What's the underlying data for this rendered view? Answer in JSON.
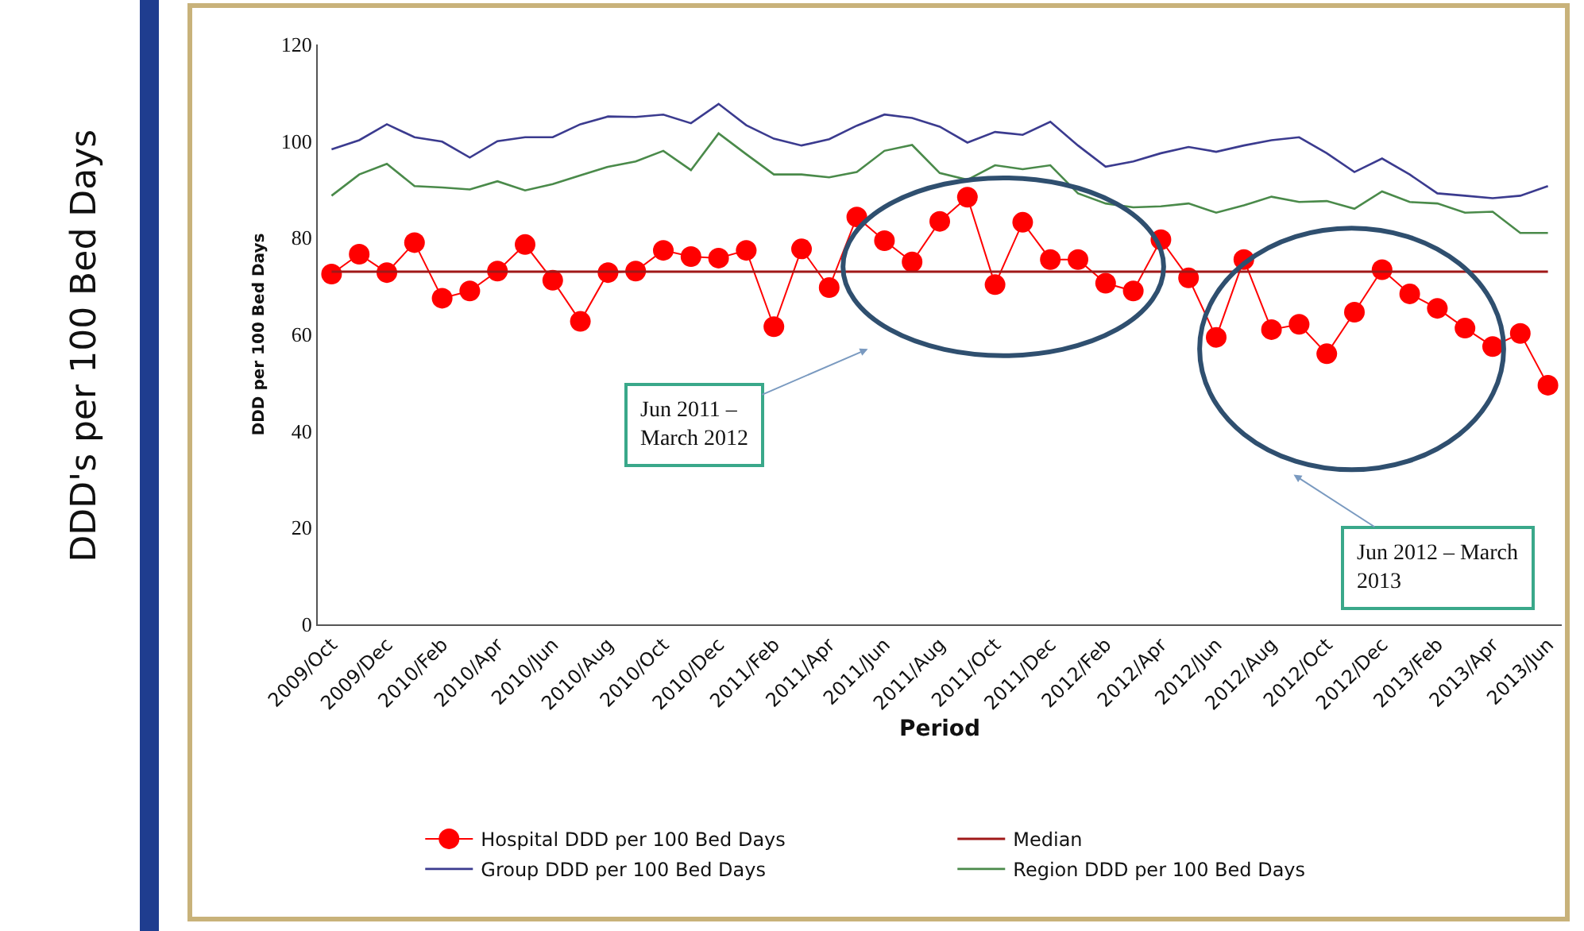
{
  "chart_data": {
    "type": "line",
    "xlabel": "Period",
    "ylabel": "DDD per 100 Bed Days",
    "categories": [
      "2009/Oct",
      null,
      "2009/Dec",
      null,
      "2010/Feb",
      null,
      "2010/Apr",
      null,
      "2010/Jun",
      null,
      "2010/Aug",
      null,
      "2010/Oct",
      null,
      "2010/Dec",
      null,
      "2011/Feb",
      null,
      "2011/Apr",
      null,
      "2011/Jun",
      null,
      "2011/Aug",
      null,
      "2011/Oct",
      null,
      "2011/Dec",
      null,
      "2012/Feb",
      null,
      "2012/Apr",
      null,
      "2012/Jun",
      null,
      "2012/Aug",
      null,
      "2012/Oct",
      null,
      "2012/Dec",
      null,
      "2013/Feb",
      null,
      "2013/Apr",
      null,
      "2013/Jun"
    ],
    "series": [
      {
        "name": "Hospital DDD per 100 Bed Days",
        "color": "#ff0000",
        "marker": "circle",
        "values": [
          72.5,
          76.6,
          72.8,
          79.0,
          67.5,
          69.0,
          73.1,
          78.6,
          71.2,
          62.7,
          72.8,
          73.1,
          77.4,
          76.1,
          75.8,
          77.4,
          61.6,
          77.7,
          69.7,
          84.3,
          79.4,
          75.0,
          83.4,
          88.4,
          70.3,
          83.2,
          75.5,
          75.5,
          70.6,
          69.0,
          79.6,
          71.7,
          59.4,
          75.5,
          61.0,
          62.1,
          56.0,
          64.6,
          73.4,
          68.4,
          65.4,
          61.3,
          57.5,
          60.2,
          49.5
        ]
      },
      {
        "name": "Group DDD per 100 Bed Days",
        "color": "#3b3b8f",
        "values": [
          98.3,
          100.2,
          103.5,
          100.8,
          99.9,
          96.6,
          100.0,
          100.8,
          100.8,
          103.5,
          105.1,
          105.0,
          105.5,
          103.7,
          107.7,
          103.3,
          100.5,
          99.1,
          100.4,
          103.2,
          105.5,
          104.8,
          103.0,
          99.7,
          101.9,
          101.3,
          104.0,
          99.1,
          94.7,
          95.8,
          97.5,
          98.8,
          97.8,
          99.1,
          100.2,
          100.8,
          97.5,
          93.6,
          96.4,
          93.1,
          89.2,
          88.7,
          88.2,
          88.7,
          90.7
        ]
      },
      {
        "name": "Region DDD per 100 Bed Days",
        "color": "#4a8a4a",
        "values": [
          88.7,
          93.1,
          95.3,
          90.7,
          90.4,
          90.0,
          91.7,
          89.8,
          91.1,
          92.9,
          94.7,
          95.8,
          98.0,
          94.0,
          101.6,
          97.3,
          93.1,
          93.1,
          92.5,
          93.6,
          98.0,
          99.2,
          93.4,
          92.0,
          95.0,
          94.2,
          95.0,
          89.2,
          87.1,
          86.3,
          86.5,
          87.1,
          85.2,
          86.7,
          88.5,
          87.4,
          87.6,
          86.0,
          89.6,
          87.4,
          87.1,
          85.2,
          85.4,
          81.0,
          81.0
        ]
      }
    ],
    "ref_lines": [
      {
        "axis": "y",
        "value": 73,
        "label": "Median",
        "color": "#a01818"
      }
    ],
    "annotations": [
      "DDD's per 100 Bed Days",
      "Jun 2011 –\nMarch 2012",
      "Jun 2012 – March\n2013"
    ],
    "ylim": [
      0,
      120
    ],
    "yticks": [
      0,
      20,
      40,
      60,
      80,
      100,
      120
    ],
    "grid": false,
    "legend": "bottom"
  }
}
